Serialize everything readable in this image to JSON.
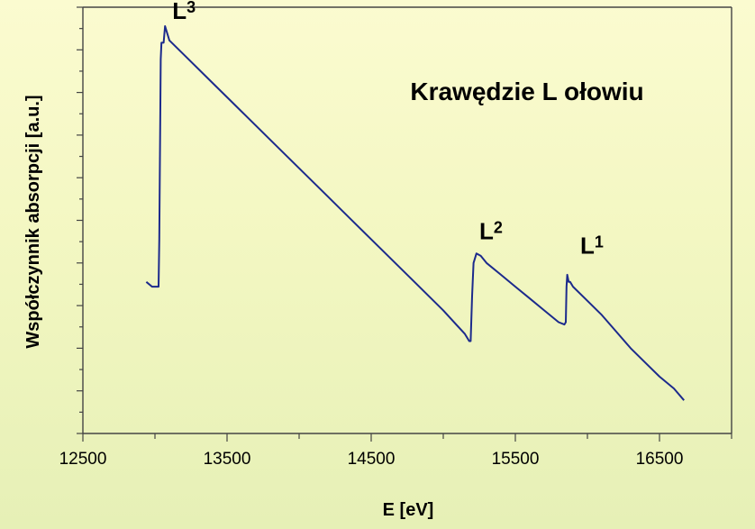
{
  "chart_data": {
    "type": "line",
    "title": "Krawędzie L ołowiu",
    "xlabel": "E [eV]",
    "ylabel": "Współczynnik absorpcji [a.u.]",
    "xlim": [
      12500,
      17000
    ],
    "ylim": [
      0,
      9
    ],
    "x_ticks": [
      12500,
      13500,
      14500,
      15500,
      16500
    ],
    "y_tick_count": 9,
    "grid": false,
    "legend": "none",
    "series": [
      {
        "x": [
          12940,
          12980,
          13025,
          13030,
          13040,
          13045,
          13060,
          13070,
          13080,
          13100,
          13200,
          13400,
          13600,
          13800,
          14000,
          14200,
          14400,
          14600,
          14800,
          15000,
          15150,
          15180,
          15190,
          15200,
          15210,
          15230,
          15260,
          15300,
          15400,
          15500,
          15600,
          15700,
          15800,
          15840,
          15850,
          15855,
          15860,
          15870,
          15880,
          15900,
          16000,
          16100,
          16200,
          16300,
          16400,
          16500,
          16600,
          16670
        ],
        "y": [
          3.2,
          3.1,
          3.1,
          4.1,
          7.9,
          8.25,
          8.25,
          8.6,
          8.5,
          8.3,
          8.0,
          7.4,
          6.8,
          6.2,
          5.6,
          5.0,
          4.4,
          3.8,
          3.2,
          2.6,
          2.1,
          1.95,
          1.95,
          2.9,
          3.6,
          3.8,
          3.75,
          3.6,
          3.35,
          3.1,
          2.85,
          2.6,
          2.35,
          2.3,
          2.35,
          3.1,
          3.35,
          3.2,
          3.2,
          3.1,
          2.8,
          2.5,
          2.15,
          1.8,
          1.5,
          1.2,
          0.95,
          0.7
        ]
      }
    ],
    "annotations": [
      {
        "main": "L",
        "sub": "3",
        "x": 13120,
        "y": 8.75
      },
      {
        "main": "L",
        "sub": "2",
        "x": 15250,
        "y": 4.1
      },
      {
        "main": "L",
        "sub": "1",
        "x": 15950,
        "y": 3.8
      }
    ]
  }
}
